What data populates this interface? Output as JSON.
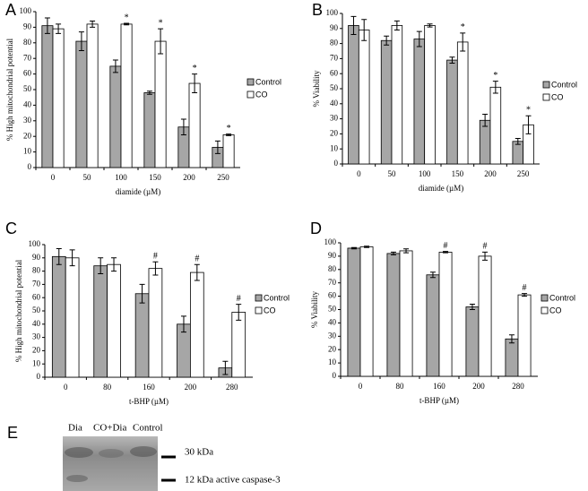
{
  "chart_data": [
    {
      "type": "bar",
      "panel": "A",
      "x_label": "diamide (µM)",
      "y_label": "% High mitochondrial potential",
      "categories": [
        "0",
        "50",
        "100",
        "150",
        "200",
        "250"
      ],
      "ylim": [
        0,
        100
      ],
      "yticks": [
        0,
        10,
        20,
        30,
        40,
        50,
        60,
        70,
        80,
        90,
        100
      ],
      "series": [
        {
          "name": "Control",
          "color": "#a6a6a6",
          "values": [
            91,
            81,
            65,
            48,
            26,
            13
          ],
          "errors": [
            5,
            6,
            4,
            1,
            5,
            4
          ]
        },
        {
          "name": "CO",
          "color": "#ffffff",
          "values": [
            89,
            92,
            92,
            81,
            54,
            21
          ],
          "errors": [
            3,
            2,
            0.5,
            8,
            6,
            0.5
          ],
          "markers": [
            null,
            null,
            "*",
            "*",
            "*",
            "*"
          ]
        }
      ]
    },
    {
      "type": "bar",
      "panel": "B",
      "x_label": "diamide (µM)",
      "y_label": "% Viability",
      "categories": [
        "0",
        "50",
        "100",
        "150",
        "200",
        "250"
      ],
      "ylim": [
        0,
        100
      ],
      "yticks": [
        0,
        10,
        20,
        30,
        40,
        50,
        60,
        70,
        80,
        90,
        100
      ],
      "series": [
        {
          "name": "Control",
          "color": "#a6a6a6",
          "values": [
            92,
            82,
            83,
            69,
            29,
            15
          ],
          "errors": [
            6,
            3,
            5,
            2,
            4,
            2
          ]
        },
        {
          "name": "CO",
          "color": "#ffffff",
          "values": [
            89,
            92,
            92,
            81,
            51,
            26
          ],
          "errors": [
            7,
            3,
            1,
            6,
            4,
            6
          ],
          "markers": [
            null,
            null,
            null,
            "*",
            "*",
            "*"
          ]
        }
      ]
    },
    {
      "type": "bar",
      "panel": "C",
      "x_label": "t-BHP (µM)",
      "y_label": "% High mitochondrial potential",
      "categories": [
        "0",
        "80",
        "160",
        "200",
        "280"
      ],
      "ylim": [
        0,
        100
      ],
      "yticks": [
        0,
        10,
        20,
        30,
        40,
        50,
        60,
        70,
        80,
        90,
        100
      ],
      "series": [
        {
          "name": "Control",
          "color": "#a6a6a6",
          "values": [
            91,
            84,
            63,
            40,
            7
          ],
          "errors": [
            6,
            6,
            7,
            6,
            5
          ]
        },
        {
          "name": "CO",
          "color": "#ffffff",
          "values": [
            90,
            85,
            82,
            79,
            49
          ],
          "errors": [
            6,
            5,
            5,
            6,
            6
          ],
          "markers": [
            null,
            null,
            "#",
            "#",
            "#"
          ]
        }
      ]
    },
    {
      "type": "bar",
      "panel": "D",
      "x_label": "t-BHP (µM)",
      "y_label": "% Viability",
      "categories": [
        "0",
        "80",
        "160",
        "200",
        "280"
      ],
      "ylim": [
        0,
        100
      ],
      "yticks": [
        0,
        10,
        20,
        30,
        40,
        50,
        60,
        70,
        80,
        90,
        100
      ],
      "series": [
        {
          "name": "Control",
          "color": "#a6a6a6",
          "values": [
            96,
            92,
            76,
            52,
            28
          ],
          "errors": [
            0.5,
            1,
            2,
            2,
            3
          ]
        },
        {
          "name": "CO",
          "color": "#ffffff",
          "values": [
            97,
            94,
            93,
            90,
            61
          ],
          "errors": [
            0.5,
            1.5,
            0.5,
            3,
            1
          ],
          "markers": [
            null,
            null,
            "#",
            "#",
            "#"
          ]
        }
      ]
    }
  ],
  "blot": {
    "panel": "E",
    "lanes": [
      "Dia",
      "CO+Dia",
      "Control"
    ],
    "band_upper": "30 kDa",
    "band_lower": "12 kDa  active caspase-3"
  }
}
